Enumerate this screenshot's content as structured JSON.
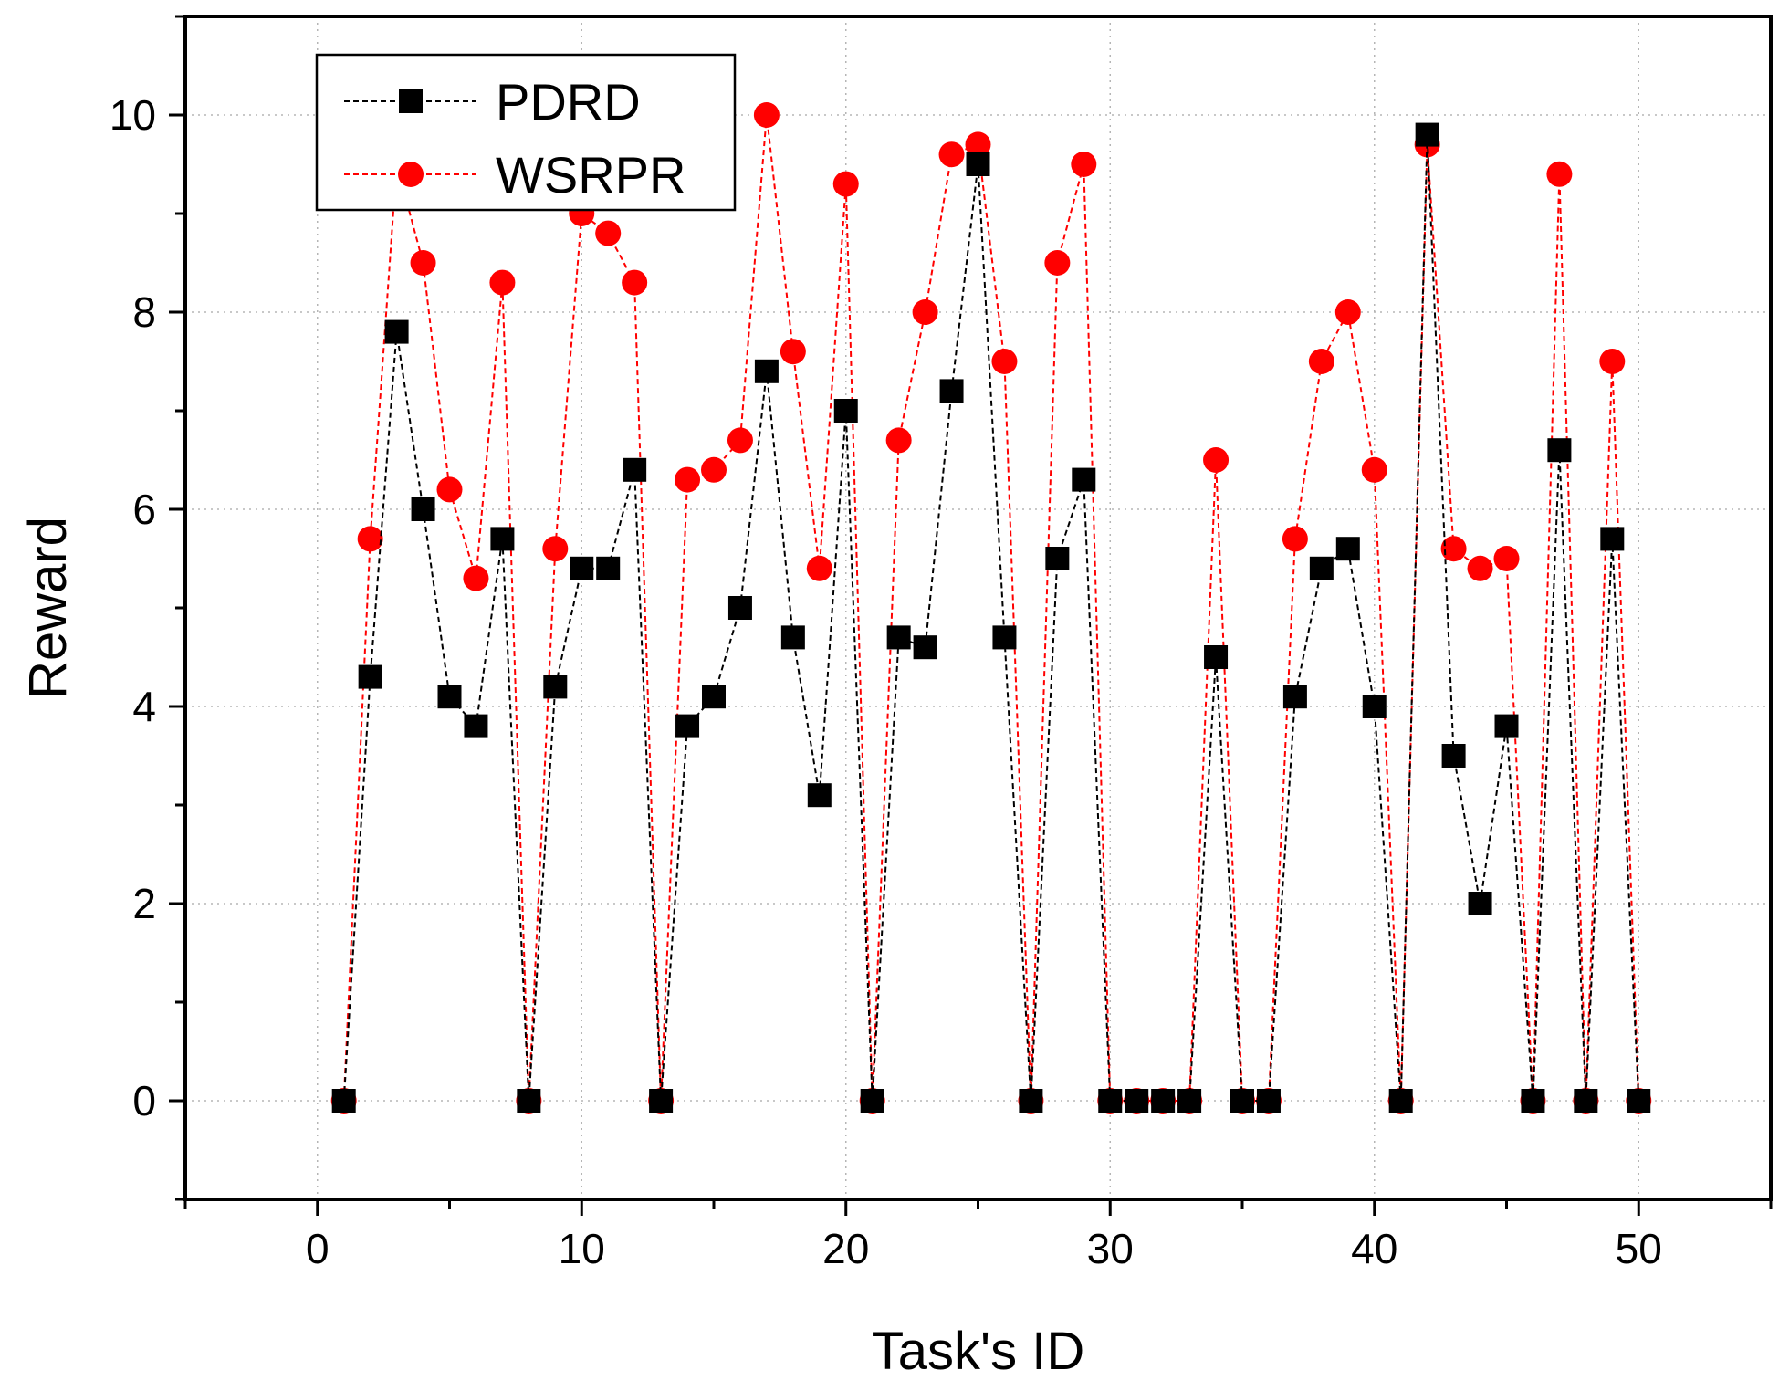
{
  "chart_data": {
    "type": "line",
    "title": "",
    "xlabel": "Task's ID",
    "ylabel": "Reward",
    "xlim": [
      -5,
      55
    ],
    "ylim": [
      -1,
      11
    ],
    "xticks": [
      0,
      10,
      20,
      30,
      40,
      50
    ],
    "yticks": [
      0,
      2,
      4,
      6,
      8,
      10
    ],
    "grid": true,
    "legend_position": "top-left",
    "x": [
      1,
      2,
      3,
      4,
      5,
      6,
      7,
      8,
      9,
      10,
      11,
      12,
      13,
      14,
      15,
      16,
      17,
      18,
      19,
      20,
      21,
      22,
      23,
      24,
      25,
      26,
      27,
      28,
      29,
      30,
      31,
      32,
      33,
      34,
      35,
      36,
      37,
      38,
      39,
      40,
      41,
      42,
      43,
      44,
      45,
      46,
      47,
      48,
      49,
      50
    ],
    "series": [
      {
        "name": "PDRD",
        "color": "#000000",
        "marker": "square",
        "values": [
          0,
          4.3,
          7.8,
          6.0,
          4.1,
          3.8,
          5.7,
          0,
          4.2,
          5.4,
          5.4,
          6.4,
          0,
          3.8,
          4.1,
          5.0,
          7.4,
          4.7,
          3.1,
          7.0,
          0,
          4.7,
          4.6,
          7.2,
          9.5,
          4.7,
          0,
          5.5,
          6.3,
          0,
          0,
          0,
          0,
          4.5,
          0,
          0,
          4.1,
          5.4,
          5.6,
          4.0,
          0,
          9.8,
          3.5,
          2.0,
          3.8,
          0,
          6.6,
          0,
          5.7,
          0
        ]
      },
      {
        "name": "WSRPR",
        "color": "#ff0000",
        "marker": "circle",
        "values": [
          0,
          5.7,
          9.5,
          8.5,
          6.2,
          5.3,
          8.3,
          0,
          5.6,
          9.0,
          8.8,
          8.3,
          0,
          6.3,
          6.4,
          6.7,
          10.0,
          7.6,
          5.4,
          9.3,
          0,
          6.7,
          8.0,
          9.6,
          9.7,
          7.5,
          0,
          8.5,
          9.5,
          0,
          0,
          0,
          0,
          6.5,
          0,
          0,
          5.7,
          7.5,
          8.0,
          6.4,
          0,
          9.7,
          5.6,
          5.4,
          5.5,
          0,
          9.4,
          0,
          7.5,
          0
        ]
      }
    ]
  }
}
